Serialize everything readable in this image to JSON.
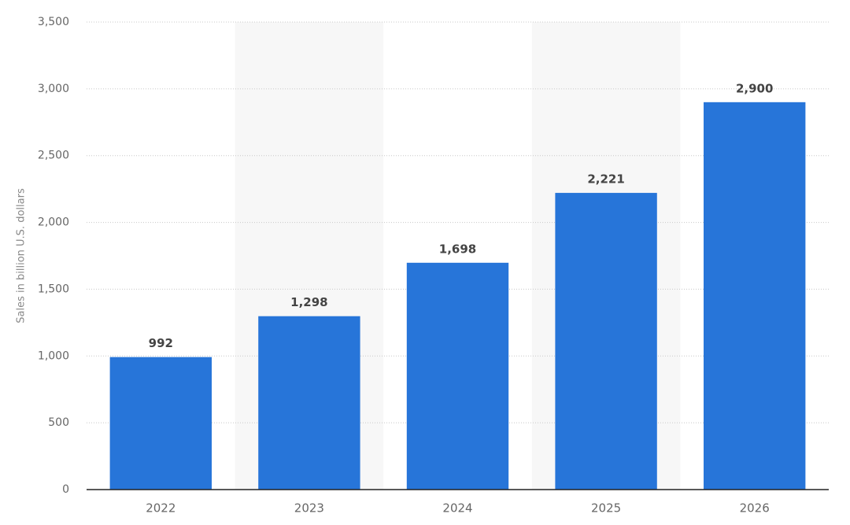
{
  "chart_data": {
    "type": "bar",
    "y_axis_label": "Sales in billion U.S. dollars",
    "categories": [
      "2022",
      "2023",
      "2024",
      "2025",
      "2026"
    ],
    "values": [
      992,
      1298,
      1698,
      2221,
      2900
    ],
    "value_labels": [
      "992",
      "1,298",
      "1,698",
      "2,221",
      "2,900"
    ],
    "color": "#2775d9",
    "ylim": [
      0,
      3500
    ],
    "yticks": [
      0,
      500,
      {
        "value": 1000,
        "label": "1,000"
      },
      {
        "value": 1500,
        "label": "1,500"
      },
      {
        "value": 2000,
        "label": "2,000"
      },
      {
        "value": 2500,
        "label": "2,500"
      },
      {
        "value": 3000,
        "label": "3,000"
      },
      {
        "value": 3500,
        "label": "3,500"
      }
    ],
    "grid": true
  }
}
